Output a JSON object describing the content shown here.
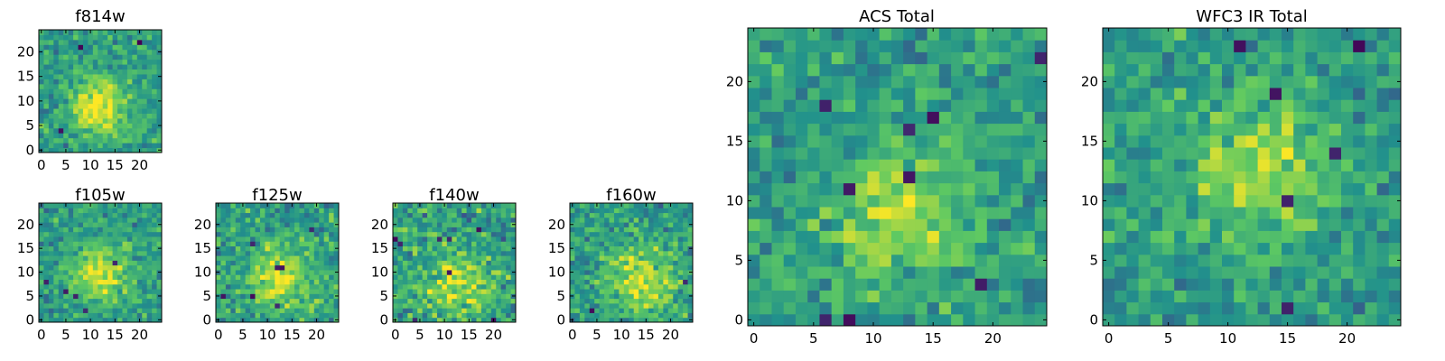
{
  "colormap": [
    "#440154",
    "#3b528b",
    "#21918c",
    "#5ec962",
    "#fde725"
  ],
  "chart_data": [
    {
      "type": "heatmap",
      "title": "f814w",
      "xlim": [
        0,
        24
      ],
      "ylim": [
        0,
        24
      ],
      "xticks": [
        "0",
        "5",
        "10",
        "15",
        "20"
      ],
      "yticks": [
        "0",
        "5",
        "10",
        "15",
        "20"
      ],
      "peak": {
        "x": 12,
        "y": 9
      },
      "peak_width": 4,
      "contrast": 0.75,
      "noise": 0.35,
      "seed": 11
    },
    {
      "type": "heatmap",
      "title": "f105w",
      "xlim": [
        0,
        24
      ],
      "ylim": [
        0,
        24
      ],
      "xticks": [
        "0",
        "5",
        "10",
        "15",
        "20"
      ],
      "yticks": [
        "0",
        "5",
        "10",
        "15",
        "20"
      ],
      "peak": {
        "x": 12,
        "y": 10
      },
      "peak_width": 4,
      "contrast": 0.7,
      "noise": 0.35,
      "seed": 23
    },
    {
      "type": "heatmap",
      "title": "f125w",
      "xlim": [
        0,
        24
      ],
      "ylim": [
        0,
        24
      ],
      "xticks": [
        "0",
        "5",
        "10",
        "15",
        "20"
      ],
      "yticks": [
        "0",
        "5",
        "10",
        "15",
        "20"
      ],
      "peak": {
        "x": 13,
        "y": 9
      },
      "peak_width": 5,
      "contrast": 0.6,
      "noise": 0.4,
      "seed": 37
    },
    {
      "type": "heatmap",
      "title": "f140w",
      "xlim": [
        0,
        24
      ],
      "ylim": [
        0,
        24
      ],
      "xticks": [
        "0",
        "5",
        "10",
        "15",
        "20"
      ],
      "yticks": [
        "0",
        "5",
        "10",
        "15",
        "20"
      ],
      "peak": {
        "x": 13,
        "y": 7
      },
      "peak_width": 5,
      "contrast": 0.55,
      "noise": 0.45,
      "seed": 41
    },
    {
      "type": "heatmap",
      "title": "f160w",
      "xlim": [
        0,
        24
      ],
      "ylim": [
        0,
        24
      ],
      "xticks": [
        "0",
        "5",
        "10",
        "15",
        "20"
      ],
      "yticks": [
        "0",
        "5",
        "10",
        "15",
        "20"
      ],
      "peak": {
        "x": 14,
        "y": 8
      },
      "peak_width": 5,
      "contrast": 0.6,
      "noise": 0.4,
      "seed": 53
    },
    {
      "type": "heatmap",
      "title": "ACS Total",
      "xlim": [
        0,
        24
      ],
      "ylim": [
        0,
        24
      ],
      "xticks": [
        "0",
        "5",
        "10",
        "15",
        "20"
      ],
      "yticks": [
        "0",
        "5",
        "10",
        "15",
        "20"
      ],
      "peak": {
        "x": 12,
        "y": 9
      },
      "peak_width": 4,
      "contrast": 0.55,
      "noise": 0.35,
      "seed": 67
    },
    {
      "type": "heatmap",
      "title": "WFC3 IR Total",
      "xlim": [
        0,
        24
      ],
      "ylim": [
        0,
        24
      ],
      "xticks": [
        "0",
        "5",
        "10",
        "15",
        "20"
      ],
      "yticks": [
        "0",
        "5",
        "10",
        "15",
        "20"
      ],
      "peak": {
        "x": 13,
        "y": 13
      },
      "peak_width": 4,
      "contrast": 0.5,
      "noise": 0.35,
      "seed": 79
    }
  ]
}
